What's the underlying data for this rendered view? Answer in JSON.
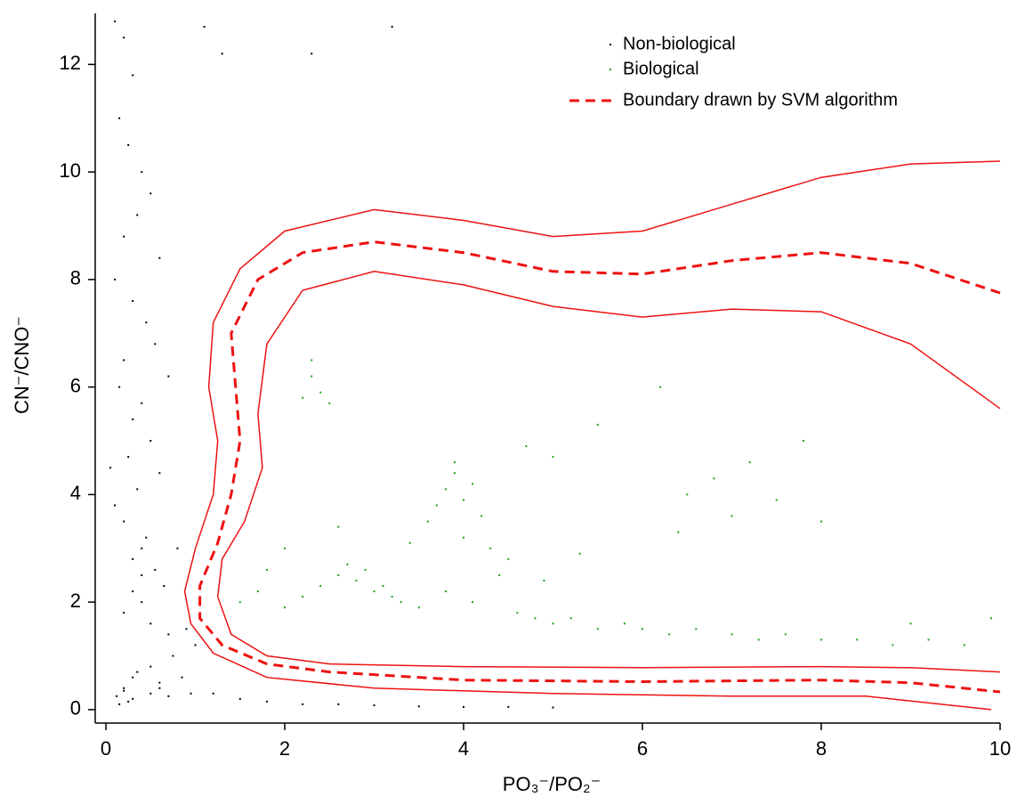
{
  "chart_data": {
    "type": "scatter",
    "x_label": "PO₃⁻/PO₂⁻",
    "y_label": "CN⁻/CNO⁻",
    "xlim": [
      -0.12,
      10
    ],
    "ylim": [
      -0.25,
      12.95
    ],
    "xticks": [
      0,
      2,
      4,
      6,
      8,
      10
    ],
    "yticks": [
      0,
      2,
      4,
      6,
      8,
      10,
      12
    ],
    "legend": "upper right",
    "series": [
      {
        "name": "Non-biological",
        "color": "#000000",
        "kind": "points",
        "x": [
          0.1,
          0.2,
          0.3,
          0.15,
          0.25,
          0.4,
          0.5,
          0.35,
          0.2,
          0.6,
          0.1,
          0.3,
          0.45,
          0.55,
          0.2,
          0.7,
          0.15,
          0.4,
          0.3,
          0.5,
          0.25,
          0.6,
          0.35,
          0.1,
          0.2,
          0.45,
          0.8,
          0.3,
          0.55,
          0.65,
          0.4,
          0.2,
          0.9,
          1.0,
          0.75,
          0.5,
          0.3,
          0.6,
          1.2,
          1.5,
          1.8,
          2.2,
          2.6,
          3.0,
          3.5,
          4.0,
          4.5,
          5.0,
          0.3,
          0.5,
          0.7,
          0.25,
          0.15,
          0.6,
          0.2,
          0.35,
          0.05,
          0.4,
          1.1,
          1.3,
          2.3,
          3.2,
          0.4,
          0.85,
          0.95,
          0.7,
          0.5,
          0.3,
          0.2,
          0.12
        ],
        "values": [
          12.8,
          12.5,
          11.8,
          11.0,
          10.5,
          10.0,
          9.6,
          9.2,
          8.8,
          8.4,
          8.0,
          7.6,
          7.2,
          6.8,
          6.5,
          6.2,
          6.0,
          5.7,
          5.4,
          5.0,
          4.7,
          4.4,
          4.1,
          3.8,
          3.5,
          3.2,
          3.0,
          2.8,
          2.6,
          2.3,
          2.0,
          1.8,
          1.5,
          1.2,
          1.0,
          0.8,
          0.6,
          0.4,
          0.3,
          0.2,
          0.15,
          0.1,
          0.1,
          0.08,
          0.06,
          0.05,
          0.05,
          0.04,
          0.2,
          0.3,
          0.25,
          0.15,
          0.1,
          0.5,
          0.35,
          0.7,
          4.5,
          3.0,
          12.7,
          12.2,
          12.2,
          12.7,
          2.5,
          0.6,
          0.3,
          1.4,
          1.6,
          2.2,
          0.4,
          0.25
        ]
      },
      {
        "name": "Biological",
        "color": "#1aa31a",
        "kind": "points",
        "x": [
          1.5,
          1.7,
          2.0,
          2.2,
          2.4,
          2.6,
          2.8,
          3.0,
          3.2,
          2.9,
          3.1,
          2.7,
          3.3,
          3.5,
          3.7,
          3.8,
          3.9,
          4.0,
          4.1,
          4.2,
          3.9,
          4.0,
          4.3,
          4.5,
          4.4,
          3.6,
          3.8,
          4.1,
          4.6,
          4.8,
          5.0,
          5.2,
          5.5,
          5.8,
          6.0,
          6.3,
          6.6,
          7.0,
          7.3,
          7.6,
          8.0,
          8.4,
          8.8,
          9.2,
          9.6,
          9.9,
          2.3,
          2.4,
          2.5,
          2.3,
          2.2,
          6.5,
          6.8,
          7.0,
          7.2,
          6.4,
          7.5,
          8.0,
          7.8,
          6.2,
          5.5,
          5.0,
          4.7,
          2.0,
          1.8,
          2.6,
          3.4,
          4.9,
          5.3,
          9.0
        ],
        "values": [
          2.0,
          2.2,
          1.9,
          2.1,
          2.3,
          2.5,
          2.4,
          2.2,
          2.1,
          2.6,
          2.3,
          2.7,
          2.0,
          1.9,
          3.8,
          4.1,
          4.4,
          3.9,
          4.2,
          3.6,
          4.6,
          3.2,
          3.0,
          2.8,
          2.5,
          3.5,
          2.2,
          2.0,
          1.8,
          1.7,
          1.6,
          1.7,
          1.5,
          1.6,
          1.5,
          1.4,
          1.5,
          1.4,
          1.3,
          1.4,
          1.3,
          1.3,
          1.2,
          1.3,
          1.2,
          1.7,
          6.2,
          5.9,
          5.7,
          6.5,
          5.8,
          4.0,
          4.3,
          3.6,
          4.6,
          3.3,
          3.9,
          3.5,
          5.0,
          6.0,
          5.3,
          4.7,
          4.9,
          3.0,
          2.6,
          3.4,
          3.1,
          2.4,
          2.9,
          1.6
        ]
      },
      {
        "name": "Boundary drawn by SVM algorithm",
        "color": "#ee1111",
        "kind": "dashed",
        "x": [
          10,
          9,
          8,
          7,
          6,
          5,
          4,
          3,
          2.2,
          1.7,
          1.4,
          1.45,
          1.5,
          1.4,
          1.25,
          1.05,
          1.05,
          1.3,
          1.8,
          2.5,
          4,
          6,
          8,
          9,
          10
        ],
        "values": [
          7.75,
          8.3,
          8.5,
          8.35,
          8.1,
          8.15,
          8.5,
          8.7,
          8.5,
          8.0,
          7.0,
          6.0,
          5.0,
          4.0,
          3.1,
          2.3,
          1.7,
          1.2,
          0.85,
          0.7,
          0.55,
          0.52,
          0.55,
          0.5,
          0.33
        ]
      }
    ],
    "margins": [
      {
        "color": "#ee1111",
        "x": [
          10,
          9,
          8,
          7,
          6,
          5,
          4,
          3,
          2,
          1.5,
          1.2,
          1.15,
          1.25,
          1.2,
          1.0,
          0.88,
          0.95,
          1.2,
          1.8,
          3,
          5,
          7,
          8.5,
          9.9
        ],
        "values": [
          10.2,
          10.15,
          9.9,
          9.4,
          8.9,
          8.8,
          9.1,
          9.3,
          8.9,
          8.2,
          7.2,
          6.0,
          5.0,
          4.0,
          3.0,
          2.2,
          1.6,
          1.05,
          0.6,
          0.4,
          0.3,
          0.25,
          0.25,
          0.0
        ]
      },
      {
        "color": "#ee1111",
        "x": [
          10,
          9,
          8,
          7,
          6,
          5,
          4,
          3,
          2.2,
          1.8,
          1.7,
          1.75,
          1.55,
          1.3,
          1.25,
          1.4,
          1.8,
          2.5,
          4,
          6,
          8,
          9,
          10
        ],
        "values": [
          5.6,
          6.8,
          7.4,
          7.45,
          7.3,
          7.5,
          7.9,
          8.15,
          7.8,
          6.8,
          5.5,
          4.5,
          3.5,
          2.8,
          2.1,
          1.4,
          1.0,
          0.85,
          0.8,
          0.78,
          0.8,
          0.78,
          0.7
        ]
      }
    ]
  }
}
